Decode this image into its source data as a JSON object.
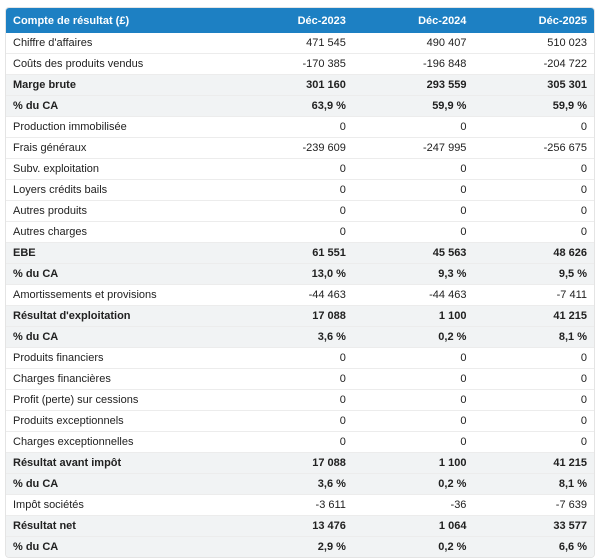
{
  "chart_data": {
    "type": "table",
    "title": "Compte de résultat (£)",
    "columns": [
      "Déc-2023",
      "Déc-2024",
      "Déc-2025"
    ],
    "rows": [
      {
        "label": "Chiffre d'affaires",
        "values": [
          "471 545",
          "490 407",
          "510 023"
        ],
        "emphasis": false
      },
      {
        "label": "Coûts des produits vendus",
        "values": [
          "-170 385",
          "-196 848",
          "-204 722"
        ],
        "emphasis": false
      },
      {
        "label": "Marge brute",
        "values": [
          "301 160",
          "293 559",
          "305 301"
        ],
        "emphasis": true
      },
      {
        "label": "% du CA",
        "values": [
          "63,9 %",
          "59,9 %",
          "59,9 %"
        ],
        "emphasis": true
      },
      {
        "label": "Production immobilisée",
        "values": [
          "0",
          "0",
          "0"
        ],
        "emphasis": false
      },
      {
        "label": "Frais généraux",
        "values": [
          "-239 609",
          "-247 995",
          "-256 675"
        ],
        "emphasis": false
      },
      {
        "label": "Subv. exploitation",
        "values": [
          "0",
          "0",
          "0"
        ],
        "emphasis": false
      },
      {
        "label": "Loyers crédits bails",
        "values": [
          "0",
          "0",
          "0"
        ],
        "emphasis": false
      },
      {
        "label": "Autres produits",
        "values": [
          "0",
          "0",
          "0"
        ],
        "emphasis": false
      },
      {
        "label": "Autres charges",
        "values": [
          "0",
          "0",
          "0"
        ],
        "emphasis": false
      },
      {
        "label": "EBE",
        "values": [
          "61 551",
          "45 563",
          "48 626"
        ],
        "emphasis": true
      },
      {
        "label": "% du CA",
        "values": [
          "13,0 %",
          "9,3 %",
          "9,5 %"
        ],
        "emphasis": true
      },
      {
        "label": "Amortissements et provisions",
        "values": [
          "-44 463",
          "-44 463",
          "-7 411"
        ],
        "emphasis": false
      },
      {
        "label": "Résultat d'exploitation",
        "values": [
          "17 088",
          "1 100",
          "41 215"
        ],
        "emphasis": true
      },
      {
        "label": "% du CA",
        "values": [
          "3,6 %",
          "0,2 %",
          "8,1 %"
        ],
        "emphasis": true
      },
      {
        "label": "Produits financiers",
        "values": [
          "0",
          "0",
          "0"
        ],
        "emphasis": false
      },
      {
        "label": "Charges financières",
        "values": [
          "0",
          "0",
          "0"
        ],
        "emphasis": false
      },
      {
        "label": "Profit (perte) sur cessions",
        "values": [
          "0",
          "0",
          "0"
        ],
        "emphasis": false
      },
      {
        "label": "Produits exceptionnels",
        "values": [
          "0",
          "0",
          "0"
        ],
        "emphasis": false
      },
      {
        "label": "Charges exceptionnelles",
        "values": [
          "0",
          "0",
          "0"
        ],
        "emphasis": false
      },
      {
        "label": "Résultat avant impôt",
        "values": [
          "17 088",
          "1 100",
          "41 215"
        ],
        "emphasis": true
      },
      {
        "label": "% du CA",
        "values": [
          "3,6 %",
          "0,2 %",
          "8,1 %"
        ],
        "emphasis": true
      },
      {
        "label": "Impôt sociétés",
        "values": [
          "-3 611",
          "-36",
          "-7 639"
        ],
        "emphasis": false
      },
      {
        "label": "Résultat net",
        "values": [
          "13 476",
          "1 064",
          "33 577"
        ],
        "emphasis": true
      },
      {
        "label": "% du CA",
        "values": [
          "2,9 %",
          "0,2 %",
          "6,6 %"
        ],
        "emphasis": true
      }
    ],
    "layout": {
      "legend": "none",
      "grid": "horizontal-row-borders",
      "value_alignment": "right"
    },
    "colors": {
      "header_bg": "#1d80c3",
      "header_text": "#ffffff",
      "emphasis_row_bg": "#f1f3f4",
      "row_border": "#ececec",
      "section_border": "#a9afb4",
      "text": "#212121"
    }
  }
}
